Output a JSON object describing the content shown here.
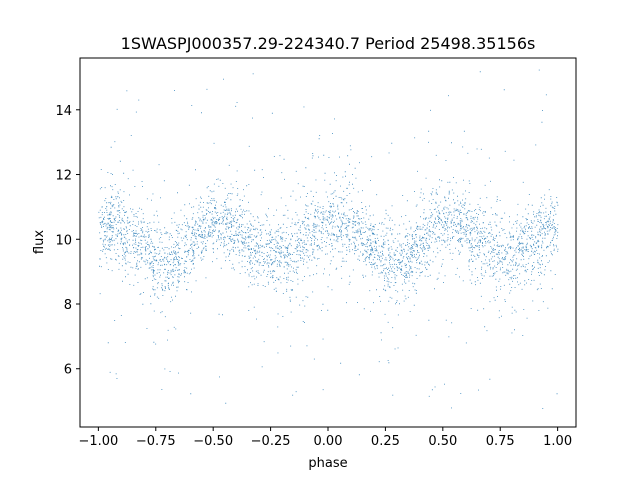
{
  "chart_data": {
    "type": "scatter",
    "title": "1SWASPJ000357.29-224340.7 Period 25498.35156s",
    "xlabel": "phase",
    "ylabel": "flux",
    "xlim": [
      -1.08,
      1.08
    ],
    "ylim": [
      4.2,
      15.6
    ],
    "xticks": [
      -1.0,
      -0.75,
      -0.5,
      -0.25,
      0.0,
      0.25,
      0.5,
      0.75,
      1.0
    ],
    "xtick_labels": [
      "−1.00",
      "−0.75",
      "−0.50",
      "−0.25",
      "0.00",
      "0.25",
      "0.50",
      "0.75",
      "1.00"
    ],
    "yticks": [
      6,
      8,
      10,
      12,
      14
    ],
    "ytick_labels": [
      "6",
      "8",
      "10",
      "12",
      "14"
    ],
    "grid": false,
    "marker_color": "#1f77b4",
    "series": [
      {
        "x_range": [
          -1.0,
          1.0
        ],
        "mean_curve": {
          "phase": [
            -1.0,
            -0.95,
            -0.9,
            -0.85,
            -0.8,
            -0.75,
            -0.7,
            -0.65,
            -0.6,
            -0.55,
            -0.5,
            -0.45,
            -0.4,
            -0.35,
            -0.3,
            -0.25,
            -0.2,
            -0.15,
            -0.1,
            -0.05,
            0.0,
            0.05,
            0.1,
            0.15,
            0.2,
            0.25,
            0.3,
            0.35,
            0.4,
            0.45,
            0.5,
            0.55,
            0.6,
            0.65,
            0.7,
            0.75,
            0.8,
            0.85,
            0.9,
            0.95,
            1.0
          ],
          "flux": [
            10.4,
            10.5,
            10.3,
            10.0,
            9.7,
            9.4,
            9.3,
            9.5,
            9.9,
            10.3,
            10.5,
            10.5,
            10.3,
            10.0,
            9.7,
            9.5,
            9.5,
            9.7,
            10.0,
            10.3,
            10.4,
            10.5,
            10.3,
            10.0,
            9.7,
            9.4,
            9.3,
            9.5,
            9.9,
            10.3,
            10.5,
            10.5,
            10.3,
            10.0,
            9.7,
            9.5,
            9.5,
            9.7,
            10.0,
            10.3,
            10.4
          ]
        },
        "core_scatter_sd": 0.55,
        "full_flux_range": [
          4.7,
          15.3
        ]
      }
    ]
  }
}
